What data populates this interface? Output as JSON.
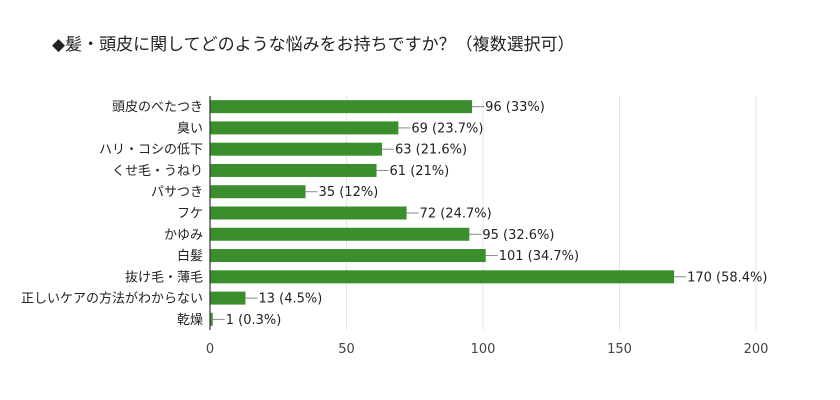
{
  "chart_data": {
    "type": "bar",
    "orientation": "horizontal",
    "title": "◆髪・頭皮に関してどのような悩みをお持ちですか？（複数選択可）",
    "categories": [
      "頭皮のべたつき",
      "臭い",
      "ハリ・コシの低下",
      "くせ毛・うねり",
      "パサつき",
      "フケ",
      "かゆみ",
      "白髪",
      "抜け毛・薄毛",
      "正しいケアの方法がわからない",
      "乾燥"
    ],
    "values": [
      96,
      69,
      63,
      61,
      35,
      72,
      95,
      101,
      170,
      13,
      1
    ],
    "data_labels": [
      "96 (33%)",
      "69 (23.7%)",
      "63 (21.6%)",
      "61 (21%)",
      "35 (12%)",
      "72 (24.7%)",
      "95 (32.6%)",
      "101 (34.7%)",
      "170 (58.4%)",
      "13 (4.5%)",
      "1 (0.3%)"
    ],
    "xlim": [
      0,
      200
    ],
    "xticks": [
      "0",
      "50",
      "100",
      "150",
      "200"
    ],
    "grid": true,
    "bar_color": "#3a8e2c",
    "xlabel": "",
    "ylabel": ""
  }
}
